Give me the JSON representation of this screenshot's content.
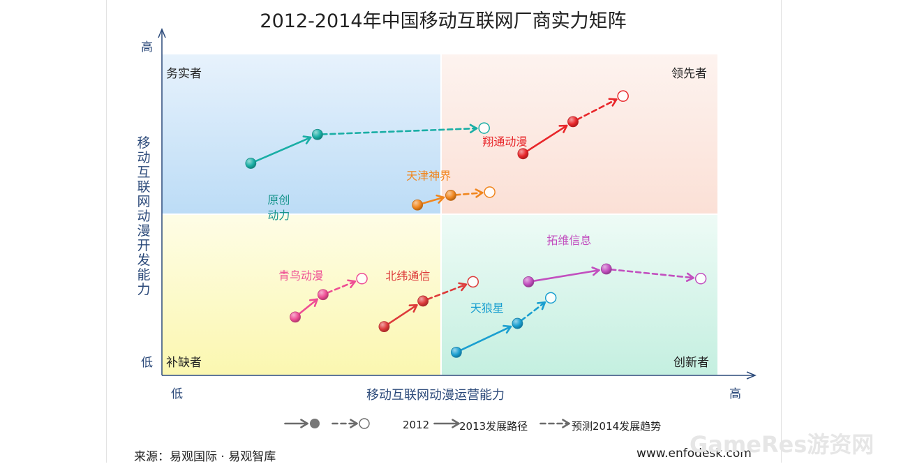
{
  "chart_data": {
    "type": "scatter",
    "title": "2012-2014年中国移动互联网厂商实力矩阵",
    "xlabel": "移动互联网动漫运营能力",
    "ylabel": "移动互联网动漫开发能力",
    "x_low": "低",
    "x_high": "高",
    "y_low": "低",
    "y_high": "高",
    "xlim": [
      0,
      100
    ],
    "ylim": [
      0,
      100
    ],
    "quadrants": [
      {
        "name": "务实者",
        "color": "#bcdcf6"
      },
      {
        "name": "领先者",
        "color": "#fbe0d6"
      },
      {
        "name": "补缺者",
        "color": "#fbf7b0"
      },
      {
        "name": "创新者",
        "color": "#c4efe0"
      }
    ],
    "series": [
      {
        "name": "翔通动漫",
        "color": "#e8262a",
        "points": {
          "2012": [
            65,
            69
          ],
          "2013": [
            74,
            79
          ],
          "2014": [
            83,
            87
          ]
        }
      },
      {
        "name": "原创动力",
        "color": "#1aaea5",
        "points": {
          "2012": [
            16,
            66
          ],
          "2013": [
            28,
            75
          ],
          "2014": [
            58,
            77
          ]
        }
      },
      {
        "name": "天津神界",
        "color": "#f0861e",
        "points": {
          "2012": [
            46,
            53
          ],
          "2013": [
            52,
            56
          ],
          "2014": [
            59,
            57
          ]
        }
      },
      {
        "name": "青鸟动漫",
        "color": "#ee4d94",
        "points": {
          "2012": [
            24,
            18
          ],
          "2013": [
            29,
            25
          ],
          "2014": [
            36,
            30
          ]
        }
      },
      {
        "name": "北纬通信",
        "color": "#dd3a3a",
        "points": {
          "2012": [
            40,
            15
          ],
          "2013": [
            47,
            23
          ],
          "2014": [
            56,
            29
          ]
        }
      },
      {
        "name": "天狼星",
        "color": "#1a9fd0",
        "points": {
          "2012": [
            53,
            7
          ],
          "2013": [
            64,
            16
          ],
          "2014": [
            70,
            24
          ]
        }
      },
      {
        "name": "拓维信息",
        "color": "#c24fbf",
        "points": {
          "2012": [
            66,
            29
          ],
          "2013": [
            80,
            33
          ],
          "2014": [
            97,
            30
          ]
        }
      }
    ],
    "legend": {
      "solid_label": "2012",
      "solid_label2": "2013发展路径",
      "dashed_label": "预测2014发展趋势"
    }
  },
  "source": "来源：易观国际 · 易观智库",
  "site": "www.enfodesk.com",
  "watermark": "GameRes游资网"
}
